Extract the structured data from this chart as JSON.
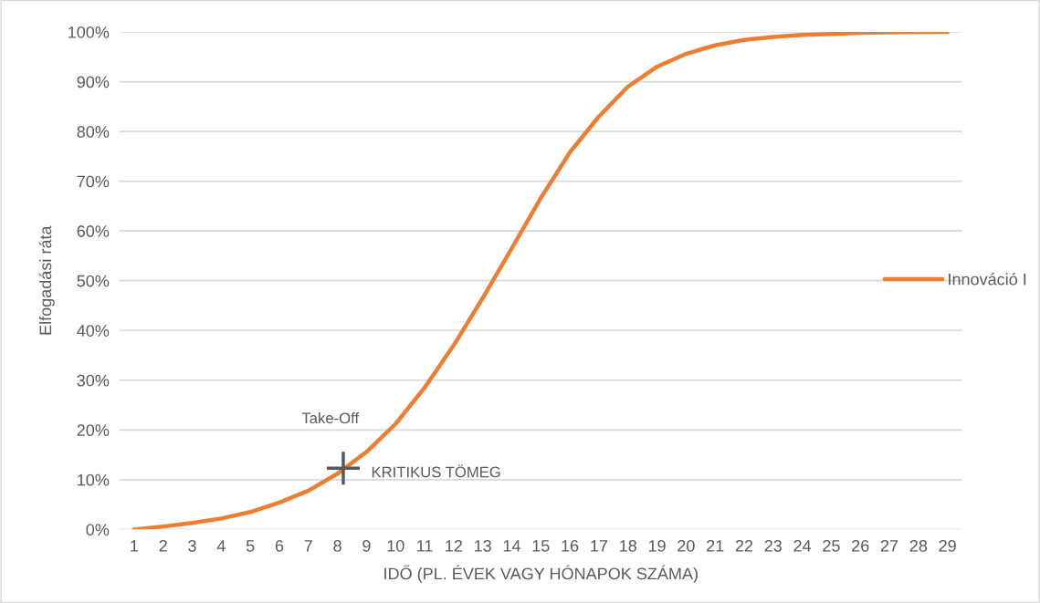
{
  "chart_data": {
    "type": "line",
    "xlabel": "IDŐ (PL. ÉVEK VAGY HÓNAPOK SZÁMA)",
    "ylabel": "Elfogadási ráta",
    "x": [
      1,
      2,
      3,
      4,
      5,
      6,
      7,
      8,
      9,
      10,
      11,
      12,
      13,
      14,
      15,
      16,
      17,
      18,
      19,
      20,
      21,
      22,
      23,
      24,
      25,
      26,
      27,
      28,
      29
    ],
    "series": [
      {
        "name": "Innováció I",
        "color": "#ed7d31",
        "values": [
          0,
          0.6,
          1.3,
          2.2,
          3.5,
          5.4,
          7.8,
          11.2,
          15.6,
          21.2,
          28.5,
          37,
          46.5,
          56.5,
          66.6,
          75.8,
          83,
          89,
          93,
          95.6,
          97.3,
          98.4,
          99,
          99.4,
          99.6,
          99.8,
          99.9,
          100,
          100
        ]
      }
    ],
    "xlim": [
      0.5,
      29.5
    ],
    "xticks": [
      1,
      2,
      3,
      4,
      5,
      6,
      7,
      8,
      9,
      10,
      11,
      12,
      13,
      14,
      15,
      16,
      17,
      18,
      19,
      20,
      21,
      22,
      23,
      24,
      25,
      26,
      27,
      28,
      29
    ],
    "ylim": [
      0,
      100
    ],
    "yticks": [
      {
        "value": 0,
        "label": "0%"
      },
      {
        "value": 10,
        "label": "10%"
      },
      {
        "value": 20,
        "label": "20%"
      },
      {
        "value": 30,
        "label": "30%"
      },
      {
        "value": 40,
        "label": "40%"
      },
      {
        "value": 50,
        "label": "50%"
      },
      {
        "value": 60,
        "label": "60%"
      },
      {
        "value": 70,
        "label": "70%"
      },
      {
        "value": 80,
        "label": "80%"
      },
      {
        "value": 90,
        "label": "90%"
      },
      {
        "value": 100,
        "label": "100%"
      }
    ],
    "grid": "y",
    "legend": "right",
    "marker": "none",
    "line_style": "solid",
    "annotations": [
      {
        "text": "Take-Off",
        "x": 9,
        "y": 15.6
      },
      {
        "text": "KRITIKUS TÖMEG",
        "x": 8.2,
        "y": 12.3
      }
    ]
  }
}
